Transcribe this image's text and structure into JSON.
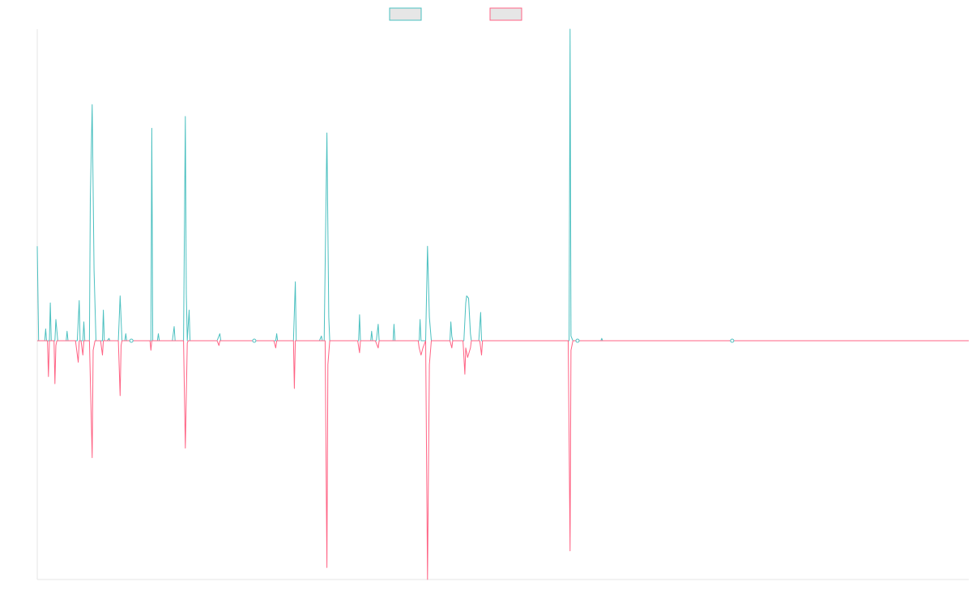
{
  "chart_data": {
    "type": "line",
    "title": "",
    "xlabel": "",
    "ylabel": "",
    "legend": "top-center",
    "grid": false,
    "x_range": [
      0,
      1000
    ],
    "ylim": [
      -1.0,
      1.32
    ],
    "series": [
      {
        "color": "#4bc0c0",
        "points": [
          [
            0,
            0.4
          ],
          [
            1.5,
            0
          ],
          [
            8,
            0
          ],
          [
            9,
            0.05
          ],
          [
            10,
            0
          ],
          [
            13,
            0
          ],
          [
            14,
            0.16
          ],
          [
            15,
            0
          ],
          [
            19,
            0
          ],
          [
            20,
            0.09
          ],
          [
            22,
            0
          ],
          [
            31,
            0
          ],
          [
            32,
            0.04
          ],
          [
            33,
            0
          ],
          [
            43,
            0
          ],
          [
            45,
            0.17
          ],
          [
            46,
            0
          ],
          [
            49,
            0
          ],
          [
            50,
            0.08
          ],
          [
            51,
            0
          ],
          [
            56,
            0
          ],
          [
            57,
            0.6
          ],
          [
            59,
            1.0
          ],
          [
            61,
            0.3
          ],
          [
            63,
            0
          ],
          [
            70,
            0
          ],
          [
            71,
            0.13
          ],
          [
            72,
            0
          ],
          [
            75,
            0
          ],
          [
            77,
            0.01
          ],
          [
            78,
            0
          ],
          [
            87,
            0
          ],
          [
            89,
            0.19
          ],
          [
            91,
            0
          ],
          [
            94,
            0
          ],
          [
            95,
            0.03
          ],
          [
            96,
            0
          ],
          [
            122,
            0
          ],
          [
            123,
            0.9
          ],
          [
            124,
            0
          ],
          [
            129,
            0
          ],
          [
            130,
            0.03
          ],
          [
            131,
            0
          ],
          [
            145,
            0
          ],
          [
            147,
            0.06
          ],
          [
            148,
            0
          ],
          [
            157,
            0
          ],
          [
            159,
            0.95
          ],
          [
            160,
            0.2
          ],
          [
            161,
            0
          ],
          [
            163,
            0.13
          ],
          [
            164,
            0
          ],
          [
            193,
            0
          ],
          [
            196,
            0.03
          ],
          [
            197,
            0
          ],
          [
            256,
            0
          ],
          [
            257,
            0.03
          ],
          [
            258,
            0
          ],
          [
            275,
            0
          ],
          [
            277,
            0.25
          ],
          [
            278,
            0
          ],
          [
            303,
            0
          ],
          [
            305,
            0.02
          ],
          [
            306,
            0
          ],
          [
            308,
            0
          ],
          [
            311,
            0.88
          ],
          [
            313,
            0.1
          ],
          [
            314,
            0
          ],
          [
            345,
            0
          ],
          [
            346,
            0.11
          ],
          [
            347,
            0
          ],
          [
            358,
            0
          ],
          [
            359,
            0.04
          ],
          [
            360,
            0
          ],
          [
            364,
            0
          ],
          [
            366,
            0.07
          ],
          [
            367,
            0
          ],
          [
            382,
            0
          ],
          [
            383,
            0.07
          ],
          [
            384,
            0
          ],
          [
            410,
            0
          ],
          [
            411,
            0.09
          ],
          [
            412,
            0
          ],
          [
            417,
            0
          ],
          [
            419,
            0.4
          ],
          [
            421,
            0.1
          ],
          [
            423,
            0
          ],
          [
            443,
            0
          ],
          [
            444,
            0.08
          ],
          [
            445,
            0.02
          ],
          [
            446,
            0
          ],
          [
            458,
            0
          ],
          [
            460,
            0.16
          ],
          [
            461,
            0.19
          ],
          [
            463,
            0.18
          ],
          [
            465,
            0.03
          ],
          [
            466,
            0
          ],
          [
            474,
            0
          ],
          [
            476,
            0.12
          ],
          [
            477,
            0
          ],
          [
            571,
            0
          ],
          [
            572,
            1.32
          ],
          [
            573,
            0.02
          ],
          [
            575,
            0
          ],
          [
            605,
            0
          ],
          [
            606,
            0.01
          ],
          [
            607,
            0
          ],
          [
            1000,
            0
          ]
        ]
      },
      {
        "color": "#ff6384",
        "points": [
          [
            0,
            0
          ],
          [
            11,
            0
          ],
          [
            12,
            -0.15
          ],
          [
            13,
            0
          ],
          [
            18,
            0
          ],
          [
            19,
            -0.18
          ],
          [
            20,
            -0.02
          ],
          [
            21,
            0
          ],
          [
            41,
            0
          ],
          [
            44,
            -0.09
          ],
          [
            45,
            0
          ],
          [
            47,
            0
          ],
          [
            49,
            -0.06
          ],
          [
            50,
            0
          ],
          [
            56,
            0
          ],
          [
            59,
            -0.49
          ],
          [
            60,
            -0.04
          ],
          [
            62,
            0
          ],
          [
            68,
            0
          ],
          [
            70,
            -0.06
          ],
          [
            71,
            0
          ],
          [
            87,
            0
          ],
          [
            89,
            -0.23
          ],
          [
            90,
            -0.02
          ],
          [
            91,
            0
          ],
          [
            121,
            0
          ],
          [
            122,
            -0.04
          ],
          [
            123,
            0
          ],
          [
            157,
            0
          ],
          [
            159,
            -0.45
          ],
          [
            161,
            -0.01
          ],
          [
            162,
            0
          ],
          [
            193,
            0
          ],
          [
            195,
            -0.02
          ],
          [
            196,
            0
          ],
          [
            254,
            0
          ],
          [
            256,
            -0.03
          ],
          [
            257,
            0
          ],
          [
            275,
            0
          ],
          [
            276,
            -0.2
          ],
          [
            277,
            0
          ],
          [
            309,
            0
          ],
          [
            311,
            -0.95
          ],
          [
            312,
            -0.1
          ],
          [
            314,
            0
          ],
          [
            344,
            0
          ],
          [
            346,
            -0.05
          ],
          [
            347,
            0
          ],
          [
            363,
            0
          ],
          [
            366,
            -0.03
          ],
          [
            367,
            0
          ],
          [
            409,
            0
          ],
          [
            410,
            -0.03
          ],
          [
            412,
            -0.06
          ],
          [
            414,
            -0.03
          ],
          [
            417,
            0
          ],
          [
            419,
            -1.0
          ],
          [
            421,
            -0.1
          ],
          [
            423,
            0
          ],
          [
            443,
            0
          ],
          [
            445,
            -0.03
          ],
          [
            446,
            0
          ],
          [
            457,
            0
          ],
          [
            459,
            -0.14
          ],
          [
            460,
            -0.03
          ],
          [
            462,
            -0.07
          ],
          [
            465,
            -0.03
          ],
          [
            466,
            0
          ],
          [
            475,
            0
          ],
          [
            477,
            -0.06
          ],
          [
            478,
            0
          ],
          [
            570,
            0
          ],
          [
            572,
            -0.88
          ],
          [
            573,
            -0.04
          ],
          [
            575,
            0
          ],
          [
            1000,
            0
          ]
        ]
      }
    ],
    "markers": [
      {
        "x": 101,
        "y": 0
      },
      {
        "x": 233,
        "y": 0
      },
      {
        "x": 580,
        "y": 0
      },
      {
        "x": 746,
        "y": 0
      }
    ]
  }
}
